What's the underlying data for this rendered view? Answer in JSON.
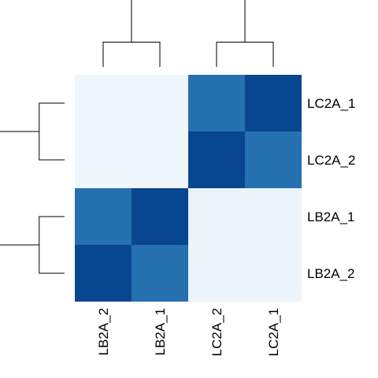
{
  "chart_data": {
    "type": "heatmap",
    "title": "",
    "xlabel": "",
    "ylabel": "",
    "row_labels": [
      "LC2A_1",
      "LC2A_2",
      "LB2A_1",
      "LB2A_2"
    ],
    "col_labels": [
      "LB2A_2",
      "LB2A_1",
      "LC2A_2",
      "LC2A_1"
    ],
    "values": [
      [
        0.02,
        0.02,
        0.65,
        1.0
      ],
      [
        0.02,
        0.02,
        1.0,
        0.65
      ],
      [
        0.65,
        1.0,
        0.03,
        0.03
      ],
      [
        1.0,
        0.65,
        0.03,
        0.03
      ]
    ],
    "value_range": [
      0,
      1
    ],
    "colormap": [
      "#f7fbff",
      "#3182bd",
      "#08468f"
    ],
    "row_dendrogram": {
      "position": "left",
      "merges": [
        [
          0,
          1,
          0.35
        ],
        [
          2,
          3,
          0.35
        ],
        [
          4,
          5,
          1.0
        ]
      ]
    },
    "col_dendrogram": {
      "position": "top",
      "merges": [
        [
          0,
          1,
          0.35
        ],
        [
          2,
          3,
          0.35
        ],
        [
          4,
          5,
          1.0
        ]
      ]
    },
    "legend": false,
    "grid": false
  }
}
